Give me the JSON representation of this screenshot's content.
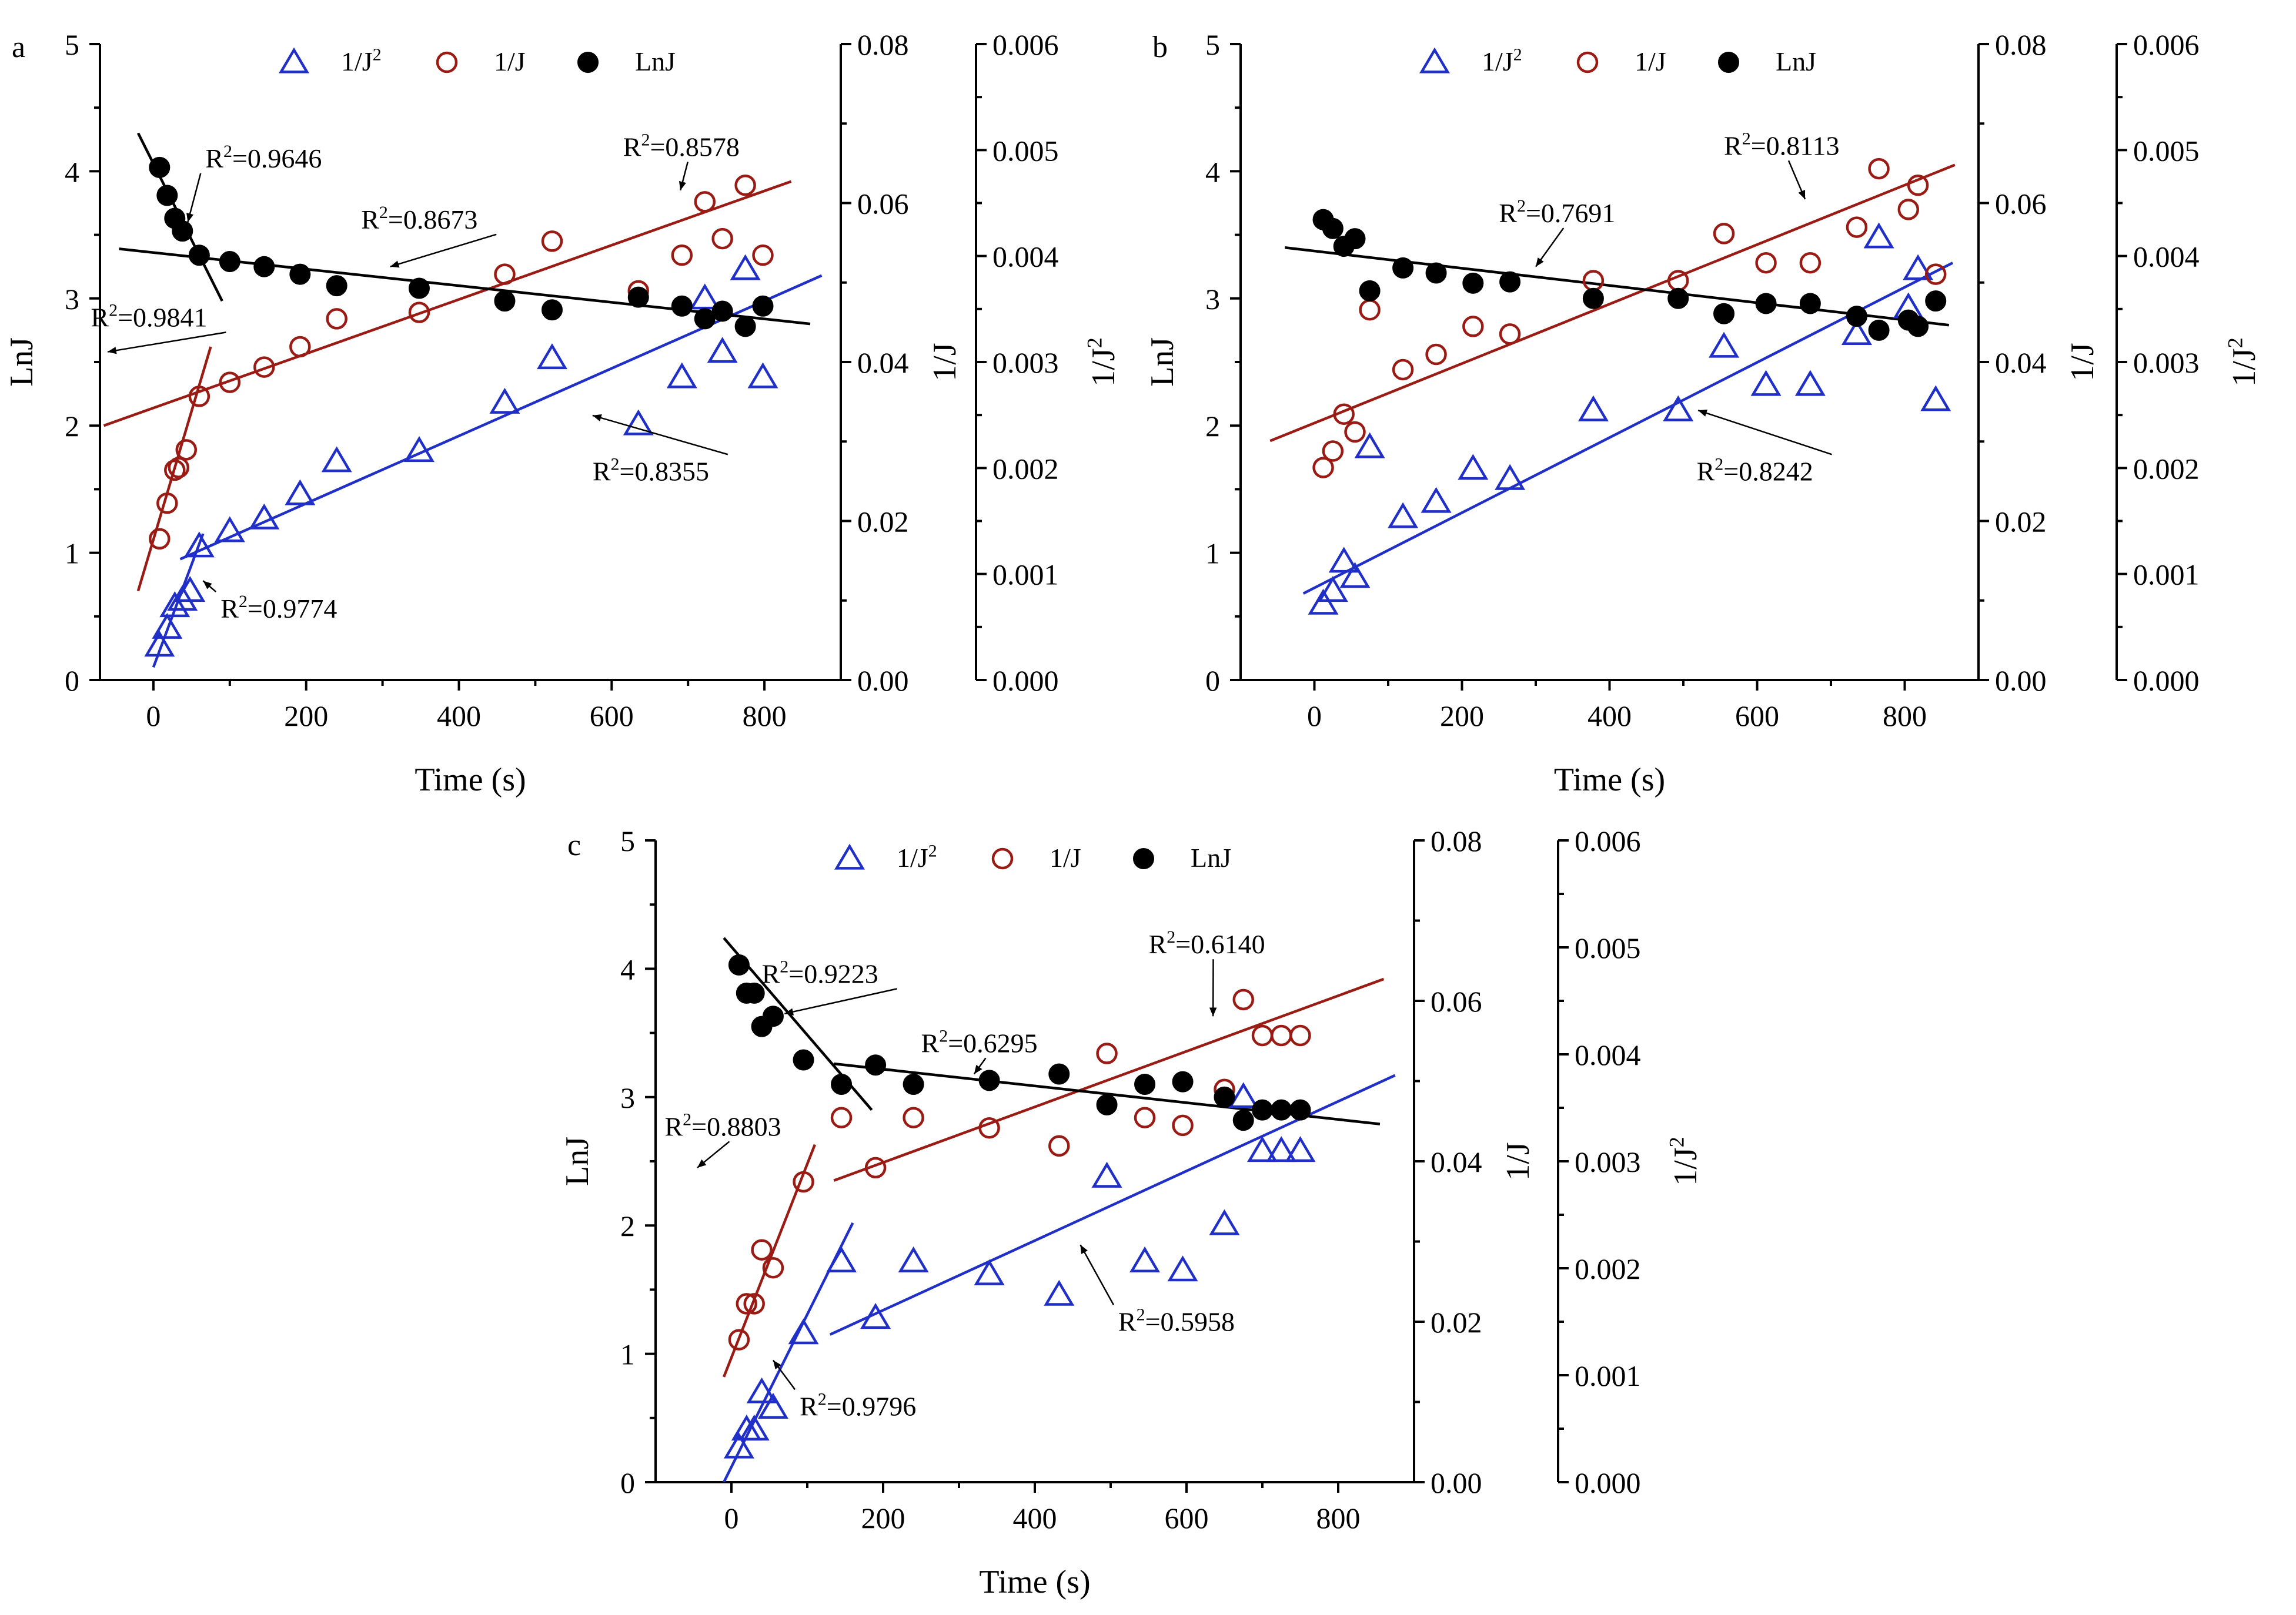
{
  "figure": {
    "units": {
      "time": "Time (s)"
    }
  },
  "chart_data": [
    {
      "panel": "a",
      "type": "scatter",
      "xlabel": "Time (s)",
      "xlim": [
        -70,
        900
      ],
      "xticks": [
        0,
        200,
        400,
        600,
        800
      ],
      "axes": {
        "left": {
          "label": "LnJ",
          "lim": [
            0,
            5
          ],
          "ticks": [
            "0",
            "1",
            "2",
            "3",
            "4",
            "5"
          ],
          "tick_values": [
            0,
            1,
            2,
            3,
            4,
            5
          ]
        },
        "right1": {
          "label": "1/J",
          "lim": [
            0,
            0.08
          ],
          "ticks": [
            "0.00",
            "0.02",
            "0.04",
            "0.06",
            "0.08"
          ],
          "tick_values": [
            0,
            0.02,
            0.04,
            0.06,
            0.08
          ]
        },
        "right2": {
          "label": "1/J2",
          "lim": [
            0,
            0.006
          ],
          "ticks": [
            "0.000",
            "0.001",
            "0.002",
            "0.003",
            "0.004",
            "0.005",
            "0.006"
          ],
          "tick_values": [
            0,
            0.001,
            0.002,
            0.003,
            0.004,
            0.005,
            0.006
          ]
        }
      },
      "legend": [
        {
          "label": "1/J2",
          "marker": "triangle-open",
          "color": "#1f2fc8"
        },
        {
          "label": "1/J",
          "marker": "circle-open",
          "color": "#9a1b14"
        },
        {
          "label": "LnJ",
          "marker": "circle-filled",
          "color": "#000000"
        }
      ],
      "series": [
        {
          "name": "1/J2",
          "color": "#1f2fc8",
          "marker": "triangle",
          "x": [
            8,
            18,
            28,
            38,
            48,
            60,
            100,
            145,
            192,
            240,
            348,
            460,
            522,
            635,
            692,
            722,
            745,
            775,
            798
          ],
          "y_left": [
            0.27,
            0.41,
            0.58,
            0.63,
            0.7,
            1.05,
            1.17,
            1.27,
            1.46,
            1.72,
            1.8,
            2.18,
            2.53,
            2.01,
            2.38,
            3.0,
            2.58,
            3.23,
            2.38
          ]
        },
        {
          "name": "1/J",
          "color": "#9a1b14",
          "marker": "circle-open",
          "x": [
            8,
            18,
            28,
            33,
            43,
            60,
            100,
            145,
            192,
            240,
            348,
            460,
            522,
            635,
            692,
            722,
            745,
            775,
            798
          ],
          "y_left": [
            1.11,
            1.39,
            1.65,
            1.67,
            1.81,
            2.23,
            2.34,
            2.46,
            2.62,
            2.84,
            2.89,
            3.19,
            3.45,
            3.06,
            3.34,
            3.76,
            3.47,
            3.89,
            3.34
          ]
        },
        {
          "name": "LnJ",
          "color": "#000000",
          "marker": "circle-filled",
          "x": [
            8,
            18,
            28,
            38,
            60,
            100,
            145,
            192,
            240,
            348,
            460,
            522,
            635,
            692,
            722,
            745,
            775,
            798
          ],
          "y_left": [
            4.03,
            3.81,
            3.63,
            3.53,
            3.34,
            3.29,
            3.25,
            3.19,
            3.1,
            3.08,
            2.98,
            2.91,
            3.01,
            2.94,
            2.84,
            2.9,
            2.78,
            2.94
          ]
        }
      ],
      "fits": [
        {
          "series": "1/J2",
          "color": "#1f2fc8",
          "x": [
            0,
            65
          ],
          "y": [
            0.1,
            1.15
          ]
        },
        {
          "series": "1/J2",
          "color": "#1f2fc8",
          "x": [
            35,
            875
          ],
          "y": [
            0.95,
            3.18
          ]
        },
        {
          "series": "1/J",
          "color": "#9a1b14",
          "x": [
            -20,
            75
          ],
          "y": [
            0.7,
            2.62
          ]
        },
        {
          "series": "1/J",
          "color": "#9a1b14",
          "x": [
            -65,
            835
          ],
          "y": [
            2.0,
            3.92
          ]
        },
        {
          "series": "LnJ",
          "color": "#000000",
          "x": [
            -20,
            90
          ],
          "y": [
            4.3,
            2.98
          ]
        },
        {
          "series": "LnJ",
          "color": "#000000",
          "x": [
            -45,
            860
          ],
          "y": [
            3.39,
            2.8
          ]
        }
      ],
      "annotations": [
        {
          "base": "R",
          "sup": "2",
          "value": "=0.9646",
          "x": 68,
          "y": 4.03,
          "arrow_to": [
            45,
            3.6
          ]
        },
        {
          "base": "R",
          "sup": "2",
          "value": "=0.8673",
          "x": 272,
          "y": 3.55,
          "arrow_to": [
            310,
            3.25
          ]
        },
        {
          "base": "R",
          "sup": "2",
          "value": "=0.8578",
          "x": 615,
          "y": 4.12,
          "arrow_to": [
            690,
            3.85
          ]
        },
        {
          "base": "R",
          "sup": "2",
          "value": "=0.9841",
          "x": -82,
          "y": 2.78,
          "arrow_to": [
            -60,
            2.58
          ]
        },
        {
          "base": "R",
          "sup": "2",
          "value": "=0.8355",
          "x": 575,
          "y": 1.57,
          "arrow_to": [
            575,
            2.08
          ]
        },
        {
          "base": "R",
          "sup": "2",
          "value": "=0.9774",
          "x": 88,
          "y": 0.49,
          "arrow_to": [
            65,
            0.78
          ]
        }
      ]
    },
    {
      "panel": "b",
      "type": "scatter",
      "xlabel": "Time (s)",
      "xlim": [
        -100,
        900
      ],
      "xticks": [
        0,
        200,
        400,
        600,
        800
      ],
      "axes": {
        "left": {
          "label": "LnJ",
          "lim": [
            0,
            5
          ],
          "ticks": [
            "0",
            "1",
            "2",
            "3",
            "4",
            "5"
          ],
          "tick_values": [
            0,
            1,
            2,
            3,
            4,
            5
          ]
        },
        "right1": {
          "label": "1/J",
          "lim": [
            0,
            0.08
          ],
          "ticks": [
            "0.00",
            "0.02",
            "0.04",
            "0.06",
            "0.08"
          ],
          "tick_values": [
            0,
            0.02,
            0.04,
            0.06,
            0.08
          ]
        },
        "right2": {
          "label": "1/J2",
          "lim": [
            0,
            0.006
          ],
          "ticks": [
            "0.000",
            "0.001",
            "0.002",
            "0.003",
            "0.004",
            "0.005",
            "0.006"
          ],
          "tick_values": [
            0,
            0.001,
            0.002,
            0.003,
            0.004,
            0.005,
            0.006
          ]
        }
      },
      "legend": [
        {
          "label": "1/J2",
          "marker": "triangle-open",
          "color": "#1f2fc8"
        },
        {
          "label": "1/J",
          "marker": "circle-open",
          "color": "#9a1b14"
        },
        {
          "label": "LnJ",
          "marker": "circle-filled",
          "color": "#000000"
        }
      ],
      "series": [
        {
          "name": "1/J2",
          "color": "#1f2fc8",
          "marker": "triangle",
          "x": [
            12,
            25,
            40,
            55,
            75,
            120,
            165,
            215,
            265,
            378,
            493,
            555,
            612,
            672,
            735,
            765,
            805,
            818,
            842
          ],
          "y_left": [
            0.6,
            0.7,
            0.93,
            0.81,
            1.83,
            1.28,
            1.4,
            1.66,
            1.58,
            2.12,
            2.12,
            2.62,
            2.32,
            2.32,
            2.72,
            3.48,
            2.93,
            3.23,
            2.2
          ]
        },
        {
          "name": "1/J",
          "color": "#9a1b14",
          "marker": "circle-open",
          "x": [
            12,
            25,
            40,
            55,
            75,
            120,
            165,
            215,
            265,
            378,
            493,
            555,
            612,
            672,
            735,
            765,
            805,
            818,
            842
          ],
          "y_left": [
            1.67,
            1.8,
            2.09,
            1.95,
            2.91,
            2.44,
            2.56,
            2.78,
            2.72,
            3.14,
            3.14,
            3.51,
            3.28,
            3.28,
            3.56,
            4.02,
            3.7,
            3.89,
            3.19
          ]
        },
        {
          "name": "LnJ",
          "color": "#000000",
          "marker": "circle-filled",
          "x": [
            12,
            25,
            40,
            55,
            75,
            120,
            165,
            215,
            265,
            378,
            493,
            555,
            612,
            672,
            735,
            765,
            805,
            818,
            842
          ],
          "y_left": [
            3.62,
            3.55,
            3.41,
            3.47,
            3.06,
            3.24,
            3.2,
            3.12,
            3.13,
            3.0,
            3.0,
            2.88,
            2.96,
            2.96,
            2.86,
            2.75,
            2.83,
            2.78,
            2.98
          ]
        }
      ],
      "fits": [
        {
          "series": "1/J2",
          "color": "#1f2fc8",
          "x": [
            -15,
            865
          ],
          "y": [
            0.68,
            3.28
          ]
        },
        {
          "series": "1/J",
          "color": "#9a1b14",
          "x": [
            -60,
            868
          ],
          "y": [
            1.88,
            4.05
          ]
        },
        {
          "series": "LnJ",
          "color": "#000000",
          "x": [
            -40,
            860
          ],
          "y": [
            3.4,
            2.79
          ]
        }
      ],
      "annotations": [
        {
          "base": "R",
          "sup": "2",
          "value": "=0.8113",
          "x": 555,
          "y": 4.13,
          "arrow_to": [
            665,
            3.78
          ]
        },
        {
          "base": "R",
          "sup": "2",
          "value": "=0.7691",
          "x": 250,
          "y": 3.6,
          "arrow_to": [
            300,
            3.25
          ]
        },
        {
          "base": "R",
          "sup": "2",
          "value": "=0.8242",
          "x": 518,
          "y": 1.57,
          "arrow_to": [
            520,
            2.12
          ]
        }
      ]
    },
    {
      "panel": "c",
      "type": "scatter",
      "xlabel": "Time (s)",
      "xlim": [
        -100,
        900
      ],
      "xticks": [
        0,
        200,
        400,
        600,
        800
      ],
      "axes": {
        "left": {
          "label": "LnJ",
          "lim": [
            0,
            5
          ],
          "ticks": [
            "0",
            "1",
            "2",
            "3",
            "4",
            "5"
          ],
          "tick_values": [
            0,
            1,
            2,
            3,
            4,
            5
          ]
        },
        "right1": {
          "label": "1/J",
          "lim": [
            0,
            0.08
          ],
          "ticks": [
            "0.00",
            "0.02",
            "0.04",
            "0.06",
            "0.08"
          ],
          "tick_values": [
            0,
            0.02,
            0.04,
            0.06,
            0.08
          ]
        },
        "right2": {
          "label": "1/J2",
          "lim": [
            0,
            0.006
          ],
          "ticks": [
            "0.000",
            "0.001",
            "0.002",
            "0.003",
            "0.004",
            "0.005",
            "0.006"
          ],
          "tick_values": [
            0,
            0.001,
            0.002,
            0.003,
            0.004,
            0.005,
            0.006
          ]
        }
      },
      "legend": [
        {
          "label": "1/J2",
          "marker": "triangle-open",
          "color": "#1f2fc8"
        },
        {
          "label": "1/J",
          "marker": "circle-open",
          "color": "#9a1b14"
        },
        {
          "label": "LnJ",
          "marker": "circle-filled",
          "color": "#000000"
        }
      ],
      "series": [
        {
          "name": "1/J2",
          "color": "#1f2fc8",
          "marker": "triangle",
          "x": [
            10,
            20,
            30,
            40,
            55,
            95,
            145,
            190,
            240,
            340,
            432,
            495,
            545,
            595,
            650,
            675,
            700,
            725,
            750
          ],
          "y_left": [
            0.27,
            0.41,
            0.41,
            0.7,
            0.58,
            1.16,
            1.72,
            1.28,
            1.72,
            1.62,
            1.46,
            2.38,
            1.72,
            1.65,
            2.01,
            3.0,
            2.58,
            2.58,
            2.58
          ]
        },
        {
          "name": "1/J",
          "color": "#9a1b14",
          "marker": "circle-open",
          "x": [
            10,
            20,
            30,
            40,
            55,
            95,
            145,
            190,
            240,
            340,
            432,
            495,
            545,
            595,
            650,
            675,
            700,
            725,
            750
          ],
          "y_left": [
            1.11,
            1.39,
            1.39,
            1.81,
            1.67,
            2.34,
            2.84,
            2.45,
            2.84,
            2.76,
            2.62,
            3.34,
            2.84,
            2.78,
            3.06,
            3.76,
            3.48,
            3.48,
            3.48
          ]
        },
        {
          "name": "LnJ",
          "color": "#000000",
          "marker": "circle-filled",
          "x": [
            10,
            20,
            30,
            40,
            55,
            95,
            145,
            190,
            240,
            340,
            432,
            495,
            545,
            595,
            650,
            675,
            700,
            725,
            750
          ],
          "y_left": [
            4.03,
            3.81,
            3.81,
            3.55,
            3.63,
            3.29,
            3.1,
            3.25,
            3.1,
            3.13,
            3.18,
            2.94,
            3.1,
            3.12,
            3.0,
            2.82,
            2.9,
            2.9,
            2.9
          ]
        }
      ],
      "fits": [
        {
          "series": "1/J2",
          "color": "#1f2fc8",
          "x": [
            -10,
            160
          ],
          "y": [
            0.0,
            2.02
          ]
        },
        {
          "series": "1/J2",
          "color": "#1f2fc8",
          "x": [
            130,
            875
          ],
          "y": [
            1.15,
            3.17
          ]
        },
        {
          "series": "1/J",
          "color": "#9a1b14",
          "x": [
            -10,
            110
          ],
          "y": [
            0.82,
            2.63
          ]
        },
        {
          "series": "1/J",
          "color": "#9a1b14",
          "x": [
            135,
            860
          ],
          "y": [
            2.35,
            3.92
          ]
        },
        {
          "series": "LnJ",
          "color": "#000000",
          "x": [
            -10,
            185
          ],
          "y": [
            4.24,
            2.9
          ]
        },
        {
          "series": "LnJ",
          "color": "#000000",
          "x": [
            135,
            855
          ],
          "y": [
            3.26,
            2.79
          ]
        }
      ],
      "annotations": [
        {
          "base": "R",
          "sup": "2",
          "value": "=0.9223",
          "x": 40,
          "y": 3.89,
          "arrow_to": [
            70,
            3.65
          ]
        },
        {
          "base": "R",
          "sup": "2",
          "value": "=0.6295",
          "x": 250,
          "y": 3.35,
          "arrow_to": [
            320,
            3.18
          ]
        },
        {
          "base": "R",
          "sup": "2",
          "value": "=0.6140",
          "x": 550,
          "y": 4.12,
          "arrow_to": [
            635,
            3.63
          ]
        },
        {
          "base": "R",
          "sup": "2",
          "value": "=0.8803",
          "x": -88,
          "y": 2.7,
          "arrow_to": [
            -45,
            2.45
          ]
        },
        {
          "base": "R",
          "sup": "2",
          "value": "=0.5958",
          "x": 510,
          "y": 1.18,
          "arrow_to": [
            460,
            1.85
          ]
        },
        {
          "base": "R",
          "sup": "2",
          "value": "=0.9796",
          "x": 90,
          "y": 0.52,
          "arrow_to": [
            55,
            0.95
          ]
        }
      ]
    }
  ]
}
